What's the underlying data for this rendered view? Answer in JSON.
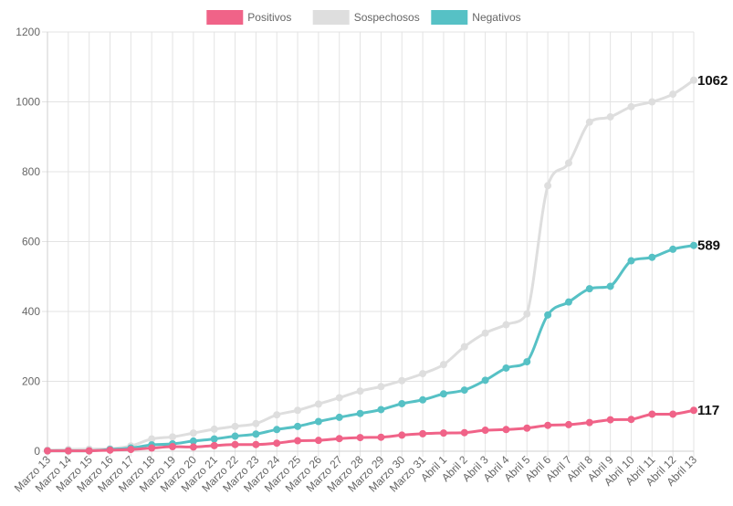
{
  "chart_data": {
    "type": "line",
    "title": "",
    "xlabel": "",
    "ylabel": "",
    "ylim": [
      0,
      1200
    ],
    "yticks": [
      0,
      200,
      400,
      600,
      800,
      1000,
      1200
    ],
    "grid": true,
    "legend_position": "top-center",
    "categories": [
      "Marzo 13",
      "Marzo 14",
      "Marzo 15",
      "Marzo 16",
      "Marzo 17",
      "Marzo 18",
      "Marzo 19",
      "Marzo 20",
      "Marzo 21",
      "Marzo 22",
      "Marzo 23",
      "Marzo 24",
      "Marzo 25",
      "Marzo 26",
      "Marzo 27",
      "Marzo 28",
      "Marzo 29",
      "Marzo 30",
      "Marzo 31",
      "Abril 1",
      "Abril 2",
      "Abril 3",
      "Abril 4",
      "Abril 5",
      "Abril 6",
      "Abril 7",
      "Abril 8",
      "Abril 9",
      "Abril 10",
      "Abril 11",
      "Abril 12",
      "Abril 13"
    ],
    "series": [
      {
        "name": "Positivos",
        "color": "#f06388",
        "values": [
          1,
          1,
          1,
          3,
          5,
          9,
          13,
          12,
          16,
          19,
          19,
          23,
          30,
          31,
          36,
          39,
          40,
          46,
          50,
          52,
          53,
          60,
          62,
          66,
          74,
          76,
          82,
          90,
          91,
          106,
          106,
          117
        ]
      },
      {
        "name": "Sospechosos",
        "color": "#dedede",
        "values": [
          3,
          5,
          6,
          7,
          15,
          35,
          41,
          52,
          63,
          71,
          79,
          104,
          117,
          135,
          153,
          172,
          185,
          202,
          222,
          248,
          299,
          338,
          362,
          393,
          760,
          825,
          942,
          957,
          986,
          1000,
          1022,
          1062
        ]
      },
      {
        "name": "Negativos",
        "color": "#56c1c5",
        "values": [
          1,
          1,
          1,
          5,
          9,
          18,
          21,
          29,
          35,
          43,
          49,
          62,
          71,
          85,
          97,
          108,
          119,
          136,
          147,
          164,
          175,
          203,
          238,
          256,
          390,
          427,
          465,
          472,
          545,
          555,
          578,
          589
        ]
      }
    ],
    "end_labels": [
      "1062",
      "589",
      "117"
    ]
  }
}
